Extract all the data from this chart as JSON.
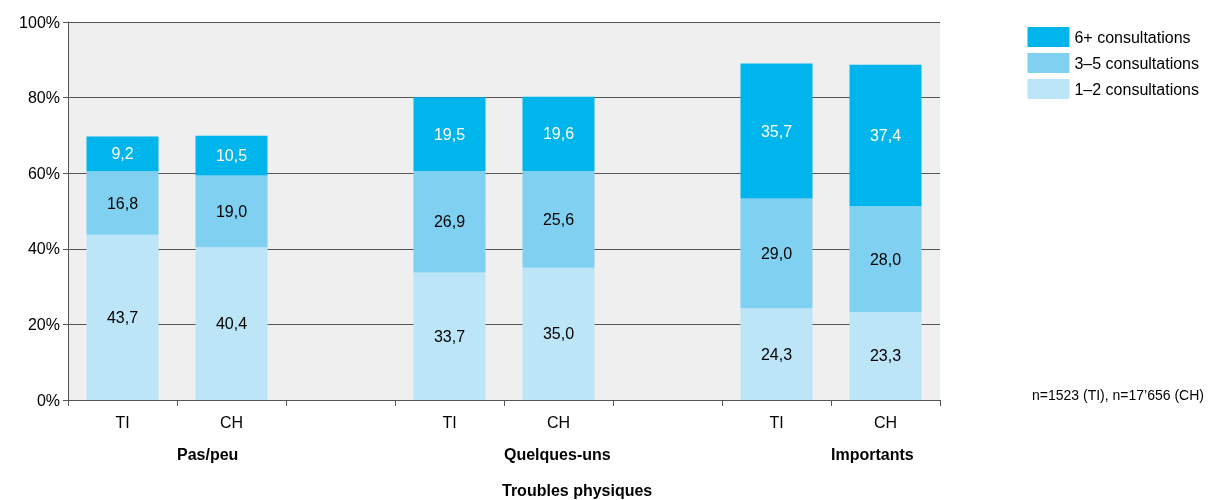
{
  "chart_data": {
    "type": "bar",
    "stacked": true,
    "xlabel": "Troubles physiques",
    "categories": [
      "TI",
      "CH",
      null,
      "TI",
      "CH",
      null,
      "TI",
      "CH"
    ],
    "series": [
      {
        "name": "1–2 consultations",
        "color": "#bde5f8",
        "values": [
          43.7,
          40.4,
          null,
          33.7,
          35.0,
          null,
          24.3,
          23.3
        ],
        "value_labels": [
          "43,7",
          "40,4",
          null,
          "33,7",
          "35,0",
          null,
          "24,3",
          "23,3"
        ]
      },
      {
        "name": "3–5 consultations",
        "color": "#80d0f2",
        "values": [
          16.8,
          19.0,
          null,
          26.9,
          25.6,
          null,
          29.0,
          28.0
        ],
        "value_labels": [
          "16,8",
          "19,0",
          null,
          "26,9",
          "25,6",
          null,
          "29,0",
          "28,0"
        ]
      },
      {
        "name": "6+ consultations",
        "color": "#00b5ec",
        "values": [
          9.2,
          10.5,
          null,
          19.5,
          19.6,
          null,
          35.7,
          37.4
        ],
        "value_labels": [
          "9,2",
          "10,5",
          null,
          "19,5",
          "19,6",
          null,
          "35,7",
          "37,4"
        ]
      }
    ],
    "ylim": [
      0,
      100
    ],
    "yticks": [
      {
        "value": 0,
        "label": "0%"
      },
      {
        "value": 20,
        "label": "20%"
      },
      {
        "value": 40,
        "label": "40%"
      },
      {
        "value": 60,
        "label": "60%"
      },
      {
        "value": 80,
        "label": "80%"
      },
      {
        "value": 100,
        "label": "100%"
      }
    ],
    "grid": "y",
    "legend": "top right",
    "annotations": [
      "Pas/peu",
      "Quelques-uns",
      "Importants",
      "n=1523 (TI), n=17’656 (CH)"
    ]
  }
}
